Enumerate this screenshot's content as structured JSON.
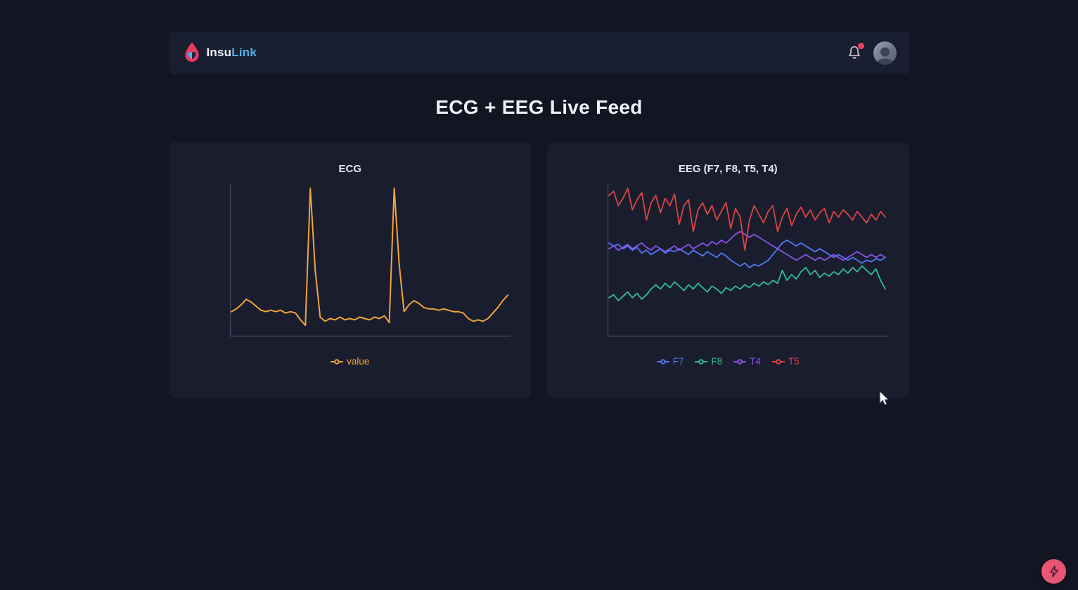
{
  "header": {
    "brand": {
      "text_primary": "Insu",
      "text_secondary": "Link"
    },
    "notifications": {
      "has_unread_badge": true
    }
  },
  "page_title": "ECG + EEG Live Feed",
  "colors": {
    "brand_accent": "#4db3e8",
    "notification_badge": "#e8415e",
    "fab_background": "#e75672",
    "card_background": "#191d2e",
    "page_background": "#131622"
  },
  "chart_data": [
    {
      "type": "line",
      "title": "ECG",
      "legend_position": "bottom",
      "grid": false,
      "ylim": [
        -0.05,
        1.02
      ],
      "series": [
        {
          "name": "value",
          "color": "#f0a43a",
          "values": [
            0.1,
            0.12,
            0.15,
            0.19,
            0.17,
            0.14,
            0.11,
            0.1,
            0.11,
            0.1,
            0.11,
            0.09,
            0.1,
            0.09,
            0.04,
            0.0,
            1.0,
            0.4,
            0.06,
            0.03,
            0.05,
            0.04,
            0.06,
            0.04,
            0.05,
            0.04,
            0.06,
            0.05,
            0.04,
            0.06,
            0.05,
            0.07,
            0.02,
            1.0,
            0.45,
            0.1,
            0.15,
            0.18,
            0.16,
            0.13,
            0.12,
            0.12,
            0.11,
            0.12,
            0.11,
            0.1,
            0.1,
            0.09,
            0.05,
            0.03,
            0.04,
            0.03,
            0.05,
            0.09,
            0.13,
            0.18,
            0.22
          ]
        }
      ]
    },
    {
      "type": "line",
      "title": "EEG (F7, F8, T5, T4)",
      "legend_position": "bottom",
      "grid": false,
      "ylim": [
        0,
        1.02
      ],
      "series": [
        {
          "name": "F7",
          "color": "#5577f5",
          "values": [
            0.62,
            0.6,
            0.61,
            0.58,
            0.6,
            0.57,
            0.59,
            0.55,
            0.57,
            0.54,
            0.56,
            0.58,
            0.55,
            0.57,
            0.56,
            0.58,
            0.56,
            0.54,
            0.57,
            0.55,
            0.53,
            0.56,
            0.54,
            0.52,
            0.55,
            0.53,
            0.5,
            0.48,
            0.46,
            0.48,
            0.45,
            0.47,
            0.46,
            0.48,
            0.5,
            0.54,
            0.58,
            0.62,
            0.64,
            0.62,
            0.6,
            0.62,
            0.6,
            0.58,
            0.56,
            0.58,
            0.56,
            0.54,
            0.52,
            0.54,
            0.52,
            0.5,
            0.52,
            0.5,
            0.48,
            0.5,
            0.49,
            0.51,
            0.5,
            0.52
          ]
        },
        {
          "name": "F8",
          "color": "#2fbf91",
          "values": [
            0.24,
            0.26,
            0.22,
            0.25,
            0.28,
            0.24,
            0.27,
            0.23,
            0.26,
            0.3,
            0.33,
            0.3,
            0.34,
            0.31,
            0.35,
            0.32,
            0.29,
            0.33,
            0.3,
            0.34,
            0.31,
            0.28,
            0.32,
            0.3,
            0.27,
            0.31,
            0.29,
            0.32,
            0.3,
            0.33,
            0.31,
            0.34,
            0.32,
            0.35,
            0.33,
            0.36,
            0.34,
            0.43,
            0.36,
            0.4,
            0.37,
            0.42,
            0.45,
            0.4,
            0.43,
            0.38,
            0.41,
            0.39,
            0.42,
            0.4,
            0.44,
            0.41,
            0.45,
            0.42,
            0.46,
            0.43,
            0.4,
            0.44,
            0.36,
            0.3
          ]
        },
        {
          "name": "T4",
          "color": "#8a54e8",
          "values": [
            0.58,
            0.6,
            0.57,
            0.59,
            0.61,
            0.58,
            0.6,
            0.62,
            0.59,
            0.57,
            0.6,
            0.58,
            0.56,
            0.58,
            0.6,
            0.57,
            0.59,
            0.61,
            0.58,
            0.6,
            0.62,
            0.6,
            0.63,
            0.61,
            0.64,
            0.62,
            0.65,
            0.68,
            0.7,
            0.68,
            0.66,
            0.68,
            0.66,
            0.64,
            0.62,
            0.6,
            0.58,
            0.56,
            0.54,
            0.52,
            0.5,
            0.52,
            0.54,
            0.52,
            0.5,
            0.52,
            0.5,
            0.52,
            0.54,
            0.52,
            0.5,
            0.52,
            0.54,
            0.56,
            0.54,
            0.52,
            0.54,
            0.52,
            0.54,
            0.52
          ]
        },
        {
          "name": "T5",
          "color": "#dd4444",
          "values": [
            0.95,
            0.98,
            0.88,
            0.93,
            1.0,
            0.85,
            0.92,
            0.97,
            0.78,
            0.9,
            0.95,
            0.83,
            0.93,
            0.88,
            0.96,
            0.75,
            0.88,
            0.92,
            0.7,
            0.85,
            0.9,
            0.82,
            0.88,
            0.78,
            0.84,
            0.9,
            0.72,
            0.86,
            0.8,
            0.57,
            0.78,
            0.88,
            0.82,
            0.76,
            0.84,
            0.88,
            0.7,
            0.8,
            0.86,
            0.74,
            0.82,
            0.87,
            0.8,
            0.85,
            0.78,
            0.83,
            0.86,
            0.76,
            0.84,
            0.8,
            0.85,
            0.82,
            0.78,
            0.84,
            0.8,
            0.76,
            0.82,
            0.78,
            0.84,
            0.8
          ]
        }
      ]
    }
  ]
}
